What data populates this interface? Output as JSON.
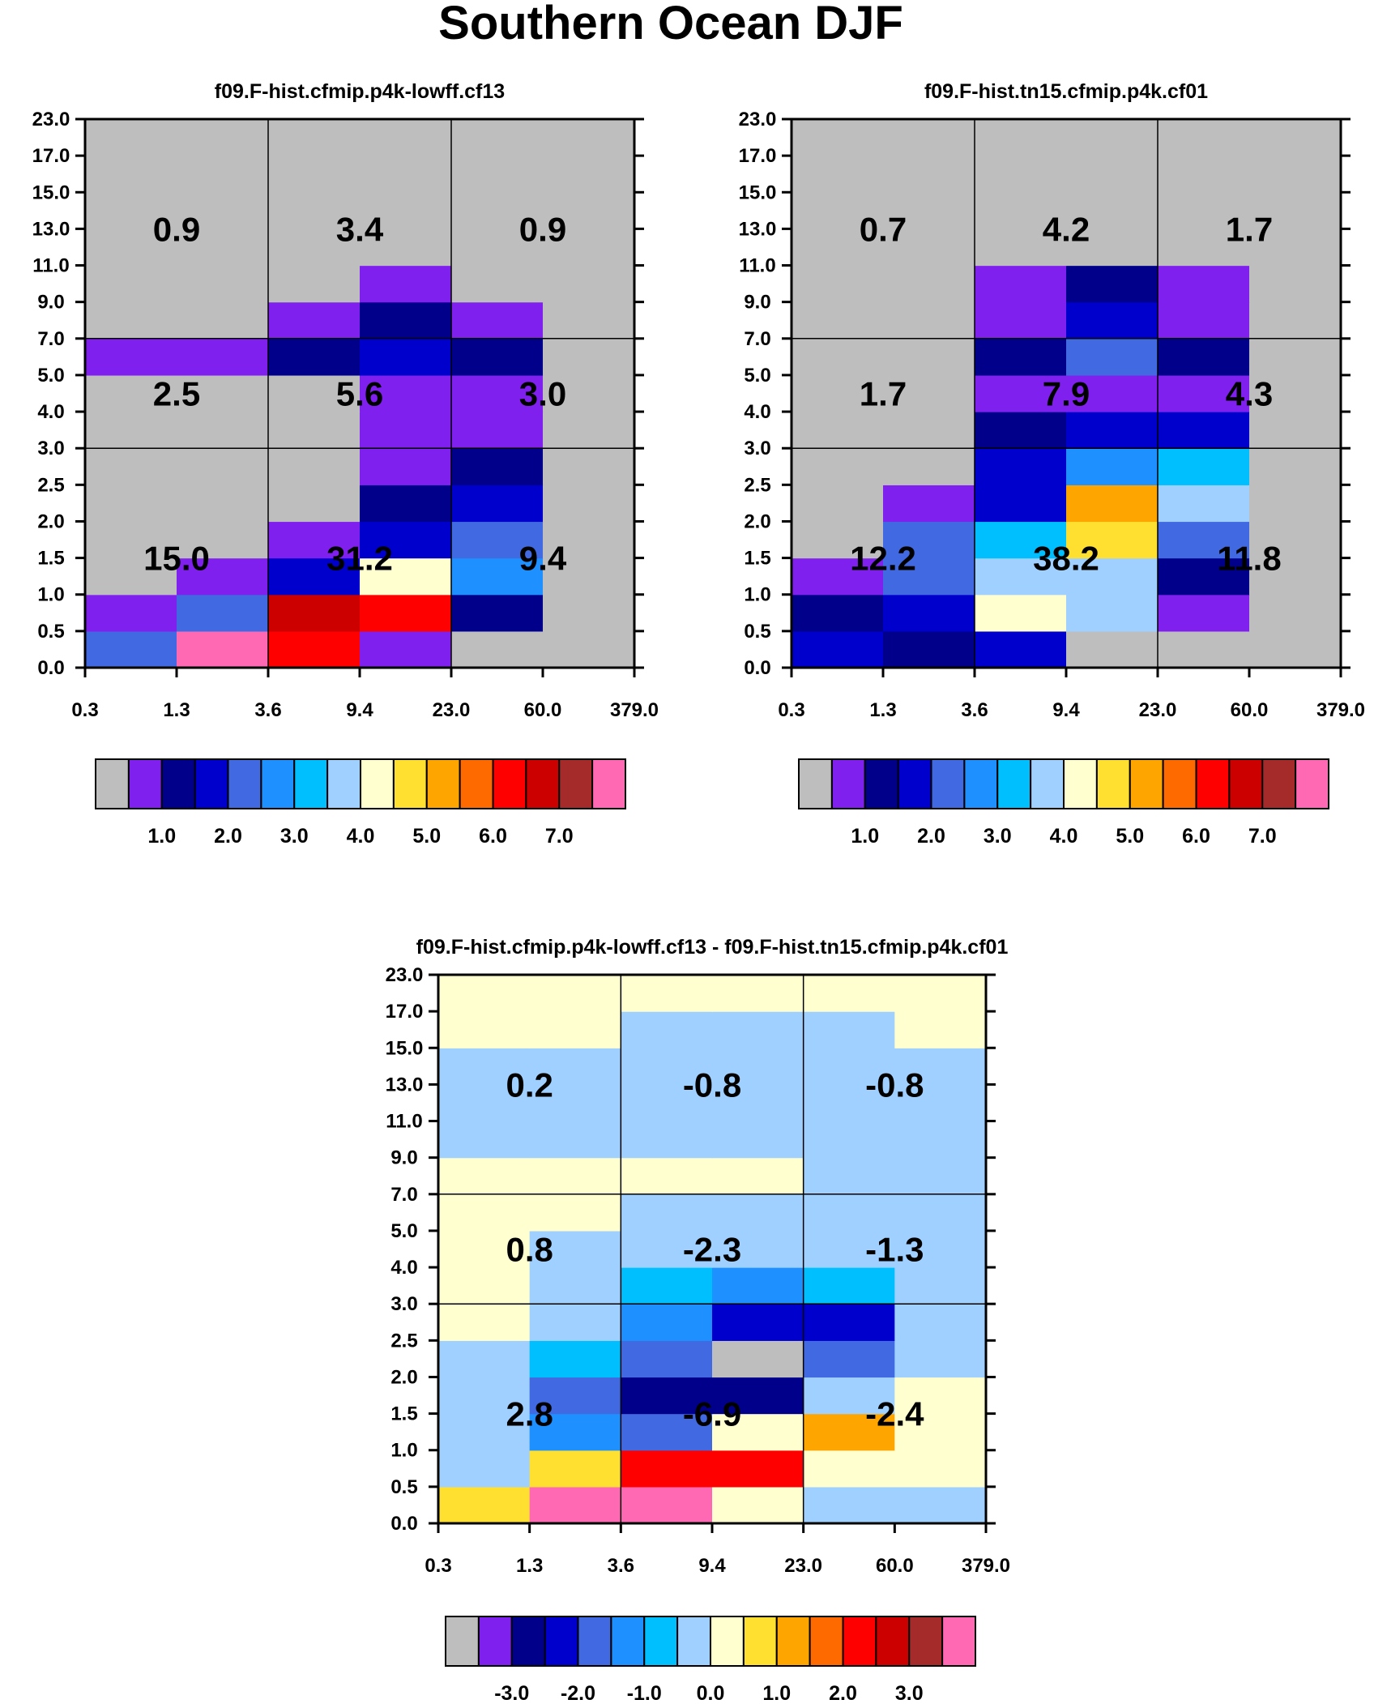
{
  "title": "Southern Ocean DJF",
  "palettes": {
    "abs": [
      "#bebebe",
      "#8020ee",
      "#00008b",
      "#0000cd",
      "#4169e1",
      "#1e90ff",
      "#00bfff",
      "#a0d0ff",
      "#ffffd0",
      "#ffe030",
      "#ffa500",
      "#ff6a00",
      "#ff0000",
      "#cd0000",
      "#a52a2a",
      "#ff69b4"
    ],
    "diff": [
      "#bebebe",
      "#8020ee",
      "#00008b",
      "#0000cd",
      "#4169e1",
      "#1e90ff",
      "#00bfff",
      "#a0d0ff",
      "#ffffd0",
      "#ffe030",
      "#ffa500",
      "#ff6a00",
      "#ff0000",
      "#cd0000",
      "#a52a2a",
      "#ff69b4"
    ]
  },
  "chart_data": [
    {
      "type": "heatmap",
      "title": "f09.F-hist.cfmip.p4k-lowff.cf13",
      "x_ticks": [
        "0.3",
        "1.3",
        "3.6",
        "9.4",
        "23.0",
        "60.0",
        "379.0"
      ],
      "y_ticks": [
        "0.0",
        "0.5",
        "1.0",
        "1.5",
        "2.0",
        "2.5",
        "3.0",
        "4.0",
        "5.0",
        "7.0",
        "9.0",
        "11.0",
        "13.0",
        "15.0",
        "17.0",
        "23.0"
      ],
      "cell_color_index_rows_bottom_to_top": [
        [
          4,
          15,
          12,
          1,
          0,
          0
        ],
        [
          1,
          4,
          13,
          12,
          2,
          0
        ],
        [
          0,
          1,
          3,
          8,
          5,
          0
        ],
        [
          0,
          0,
          1,
          3,
          4,
          0
        ],
        [
          0,
          0,
          0,
          2,
          3,
          0
        ],
        [
          0,
          0,
          0,
          1,
          2,
          0
        ],
        [
          0,
          0,
          0,
          1,
          1,
          0
        ],
        [
          0,
          0,
          0,
          1,
          1,
          0
        ],
        [
          1,
          1,
          2,
          3,
          2,
          0
        ],
        [
          0,
          0,
          1,
          2,
          1,
          0
        ],
        [
          0,
          0,
          0,
          1,
          0,
          0
        ],
        [
          0,
          0,
          0,
          0,
          0,
          0
        ],
        [
          0,
          0,
          0,
          0,
          0,
          0
        ],
        [
          0,
          0,
          0,
          0,
          0,
          0
        ],
        [
          0,
          0,
          0,
          0,
          0,
          0
        ]
      ],
      "summary_values": [
        [
          "15.0",
          "31.2",
          "9.4"
        ],
        [
          "2.5",
          "5.6",
          "3.0"
        ],
        [
          "0.9",
          "3.4",
          "0.9"
        ]
      ],
      "colorbar_labels": [
        "1.0",
        "2.0",
        "3.0",
        "4.0",
        "5.0",
        "6.0",
        "7.0"
      ]
    },
    {
      "type": "heatmap",
      "title": "f09.F-hist.tn15.cfmip.p4k.cf01",
      "x_ticks": [
        "0.3",
        "1.3",
        "3.6",
        "9.4",
        "23.0",
        "60.0",
        "379.0"
      ],
      "y_ticks": [
        "0.0",
        "0.5",
        "1.0",
        "1.5",
        "2.0",
        "2.5",
        "3.0",
        "4.0",
        "5.0",
        "7.0",
        "9.0",
        "11.0",
        "13.0",
        "15.0",
        "17.0",
        "23.0"
      ],
      "cell_color_index_rows_bottom_to_top": [
        [
          3,
          2,
          3,
          0,
          0,
          0
        ],
        [
          2,
          3,
          8,
          7,
          1,
          0
        ],
        [
          1,
          4,
          7,
          7,
          2,
          0
        ],
        [
          0,
          4,
          6,
          9,
          4,
          0
        ],
        [
          0,
          1,
          3,
          10,
          7,
          0
        ],
        [
          0,
          0,
          3,
          5,
          6,
          0
        ],
        [
          0,
          0,
          2,
          3,
          3,
          0
        ],
        [
          0,
          0,
          1,
          1,
          1,
          0
        ],
        [
          0,
          0,
          2,
          4,
          2,
          0
        ],
        [
          0,
          0,
          1,
          3,
          1,
          0
        ],
        [
          0,
          0,
          1,
          2,
          1,
          0
        ],
        [
          0,
          0,
          0,
          0,
          0,
          0
        ],
        [
          0,
          0,
          0,
          0,
          0,
          0
        ],
        [
          0,
          0,
          0,
          0,
          0,
          0
        ],
        [
          0,
          0,
          0,
          0,
          0,
          0
        ]
      ],
      "summary_values": [
        [
          "12.2",
          "38.2",
          "11.8"
        ],
        [
          "1.7",
          "7.9",
          "4.3"
        ],
        [
          "0.7",
          "4.2",
          "1.7"
        ]
      ],
      "colorbar_labels": [
        "1.0",
        "2.0",
        "3.0",
        "4.0",
        "5.0",
        "6.0",
        "7.0"
      ]
    },
    {
      "type": "heatmap",
      "title": "f09.F-hist.cfmip.p4k-lowff.cf13 - f09.F-hist.tn15.cfmip.p4k.cf01",
      "x_ticks": [
        "0.3",
        "1.3",
        "3.6",
        "9.4",
        "23.0",
        "60.0",
        "379.0"
      ],
      "y_ticks": [
        "0.0",
        "0.5",
        "1.0",
        "1.5",
        "2.0",
        "2.5",
        "3.0",
        "4.0",
        "5.0",
        "7.0",
        "9.0",
        "11.0",
        "13.0",
        "15.0",
        "17.0",
        "23.0"
      ],
      "cell_color_index_rows_bottom_to_top": [
        [
          9,
          15,
          15,
          8,
          7,
          7
        ],
        [
          7,
          9,
          12,
          12,
          8,
          8
        ],
        [
          7,
          5,
          4,
          8,
          10,
          8
        ],
        [
          7,
          4,
          2,
          2,
          7,
          8
        ],
        [
          7,
          6,
          4,
          0,
          4,
          7
        ],
        [
          8,
          7,
          5,
          3,
          3,
          7
        ],
        [
          8,
          7,
          6,
          5,
          6,
          7
        ],
        [
          8,
          7,
          7,
          7,
          7,
          7
        ],
        [
          8,
          8,
          7,
          7,
          7,
          7
        ],
        [
          8,
          8,
          8,
          8,
          7,
          7
        ],
        [
          7,
          7,
          7,
          7,
          7,
          7
        ],
        [
          7,
          7,
          7,
          7,
          7,
          7
        ],
        [
          7,
          7,
          7,
          7,
          7,
          7
        ],
        [
          8,
          8,
          7,
          7,
          7,
          8
        ],
        [
          8,
          8,
          8,
          8,
          8,
          8
        ]
      ],
      "summary_values": [
        [
          "2.8",
          "-6.9",
          "-2.4"
        ],
        [
          "0.8",
          "-2.3",
          "-1.3"
        ],
        [
          "0.2",
          "-0.8",
          "-0.8"
        ]
      ],
      "colorbar_labels": [
        "-3.0",
        "-2.0",
        "-1.0",
        "0.0",
        "1.0",
        "2.0",
        "3.0"
      ]
    }
  ]
}
